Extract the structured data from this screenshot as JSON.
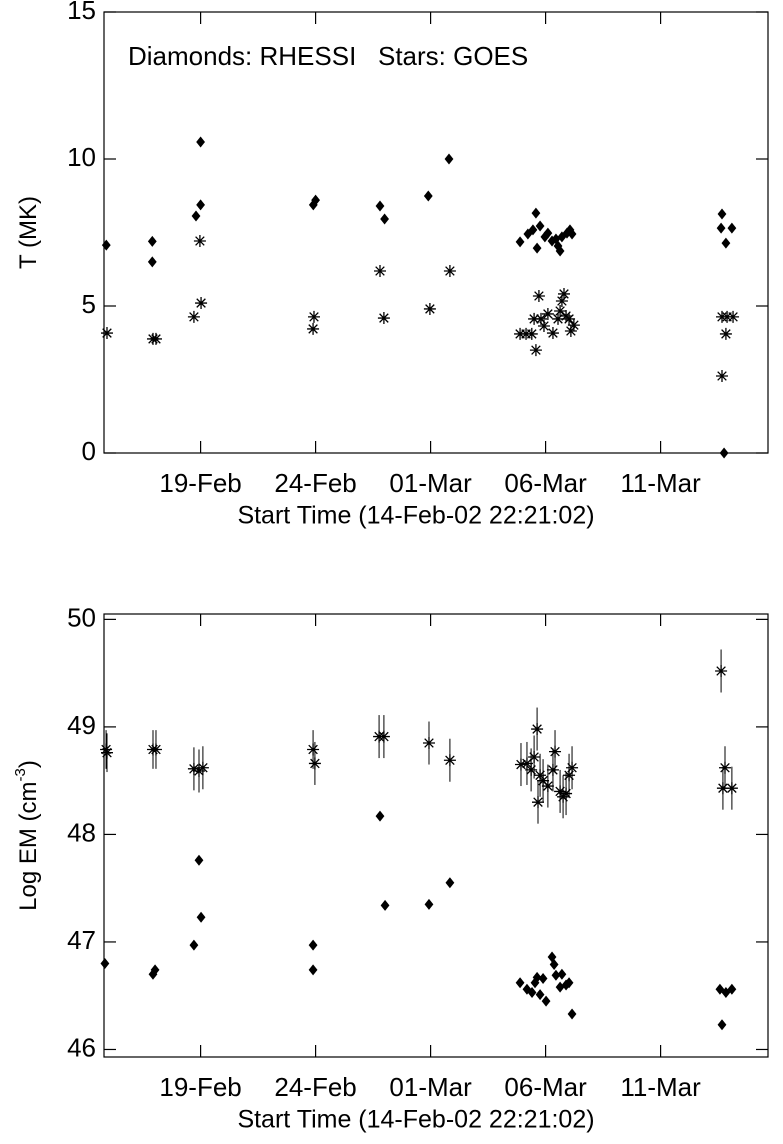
{
  "chart_data": [
    {
      "type": "scatter",
      "annotation": "Diamonds: RHESSI   Stars: GOES",
      "xlabel": "Start Time (14-Feb-02 22:21:02)",
      "ylabel": [
        "T (MK)"
      ],
      "xlim": [
        0,
        28.87
      ],
      "ylim": [
        0,
        15
      ],
      "xticks": [
        {
          "value": 4.2,
          "label": "19-Feb"
        },
        {
          "value": 9.2,
          "label": "24-Feb"
        },
        {
          "value": 14.2,
          "label": "01-Mar"
        },
        {
          "value": 19.2,
          "label": "06-Mar"
        },
        {
          "value": 24.2,
          "label": "11-Mar"
        }
      ],
      "yticks": [
        0,
        5,
        10,
        15
      ],
      "series": [
        {
          "marker": "diamond",
          "color": "#000000",
          "x": [
            0.1,
            2.1,
            2.1,
            4.0,
            4.2,
            4.2,
            9.1,
            9.2,
            12.0,
            12.2,
            14.1,
            15.0,
            18.09,
            18.43,
            18.65,
            18.78,
            18.83,
            18.96,
            19.17,
            19.3,
            19.48,
            19.65,
            19.74,
            19.83,
            19.91,
            20.13,
            20.26,
            20.35,
            26.87,
            26.83,
            27.04,
            27.3,
            26.96
          ],
          "values": [
            7.07,
            7.2,
            6.5,
            8.06,
            8.44,
            10.58,
            8.44,
            8.6,
            8.4,
            7.96,
            8.74,
            10.0,
            7.18,
            7.45,
            7.59,
            8.16,
            6.97,
            7.72,
            7.35,
            7.48,
            7.21,
            7.28,
            7.04,
            6.87,
            7.35,
            7.48,
            7.59,
            7.45,
            8.13,
            7.65,
            7.14,
            7.65,
            0.0
          ]
        },
        {
          "marker": "star",
          "color": "#000000",
          "x": [
            0.13,
            2.13,
            2.26,
            3.91,
            4.17,
            4.22,
            9.09,
            9.13,
            12.0,
            12.17,
            14.17,
            15.04,
            18.09,
            18.35,
            18.6,
            18.7,
            18.78,
            18.91,
            19.0,
            19.13,
            19.3,
            19.52,
            19.74,
            19.83,
            19.91,
            20.0,
            20.09,
            20.22,
            20.3,
            20.43,
            26.87,
            26.87,
            27.09,
            27.04,
            27.35
          ],
          "values": [
            4.08,
            3.88,
            3.88,
            4.63,
            7.21,
            5.1,
            4.22,
            4.63,
            6.19,
            4.59,
            4.9,
            6.19,
            4.05,
            4.05,
            4.05,
            4.56,
            3.5,
            5.34,
            4.56,
            4.32,
            4.73,
            4.08,
            4.56,
            4.83,
            5.17,
            5.41,
            4.66,
            4.56,
            4.15,
            4.35,
            2.62,
            4.63,
            4.63,
            4.05,
            4.63
          ]
        }
      ]
    },
    {
      "type": "scatter",
      "xlabel": "Start Time (14-Feb-02 22:21:02)",
      "ylabel": [
        "Log EM (cm",
        "-3",
        ")"
      ],
      "xlim": [
        0,
        28.87
      ],
      "ylim": [
        45.93,
        50.05
      ],
      "xticks": [
        {
          "value": 4.2,
          "label": "19-Feb"
        },
        {
          "value": 9.2,
          "label": "24-Feb"
        },
        {
          "value": 14.2,
          "label": "01-Mar"
        },
        {
          "value": 19.2,
          "label": "06-Mar"
        },
        {
          "value": 24.2,
          "label": "11-Mar"
        }
      ],
      "yticks": [
        46,
        47,
        48,
        49,
        50
      ],
      "series": [
        {
          "marker": "diamond",
          "color": "#000000",
          "x": [
            0.04,
            2.13,
            2.22,
            3.91,
            4.13,
            4.22,
            9.09,
            9.09,
            12.0,
            12.22,
            14.13,
            15.04,
            18.09,
            18.39,
            18.61,
            18.74,
            18.83,
            18.96,
            19.09,
            19.22,
            19.48,
            19.57,
            19.65,
            19.83,
            19.91,
            20.09,
            20.22,
            20.35,
            26.78,
            26.87,
            27.04,
            27.3
          ],
          "values": [
            46.8,
            46.7,
            46.74,
            46.97,
            47.76,
            47.23,
            46.97,
            46.74,
            48.17,
            47.34,
            47.35,
            47.55,
            46.62,
            46.56,
            46.53,
            46.62,
            46.67,
            46.51,
            46.66,
            46.45,
            46.86,
            46.79,
            46.69,
            46.58,
            46.7,
            46.6,
            46.62,
            46.33,
            46.56,
            46.23,
            46.53,
            46.56
          ]
        },
        {
          "marker": "star",
          "color": "#000000",
          "x": [
            0.09,
            0.13,
            2.13,
            2.26,
            3.91,
            4.13,
            4.3,
            9.09,
            9.17,
            11.96,
            12.17,
            14.13,
            15.04,
            18.13,
            18.39,
            18.57,
            18.7,
            18.83,
            18.87,
            18.96,
            19.09,
            19.3,
            19.52,
            19.61,
            19.83,
            19.96,
            20.09,
            20.22,
            20.35,
            26.83,
            26.91,
            27.0,
            27.3
          ],
          "values": [
            48.79,
            48.76,
            48.79,
            48.79,
            48.61,
            48.59,
            48.62,
            48.79,
            48.66,
            48.91,
            48.91,
            48.85,
            48.69,
            48.65,
            48.66,
            48.6,
            48.72,
            48.98,
            48.3,
            48.55,
            48.5,
            48.45,
            48.6,
            48.77,
            48.4,
            48.35,
            48.38,
            48.55,
            48.62,
            49.52,
            48.43,
            48.62,
            48.43
          ],
          "errors": [
            0.18,
            0.18,
            0.18,
            0.18,
            0.2,
            0.2,
            0.2,
            0.18,
            0.2,
            0.2,
            0.2,
            0.2,
            0.2,
            0.2,
            0.2,
            0.2,
            0.2,
            0.2,
            0.2,
            0.2,
            0.2,
            0.2,
            0.2,
            0.2,
            0.2,
            0.2,
            0.2,
            0.2,
            0.2,
            0.2,
            0.2,
            0.2,
            0.2
          ]
        }
      ]
    }
  ]
}
